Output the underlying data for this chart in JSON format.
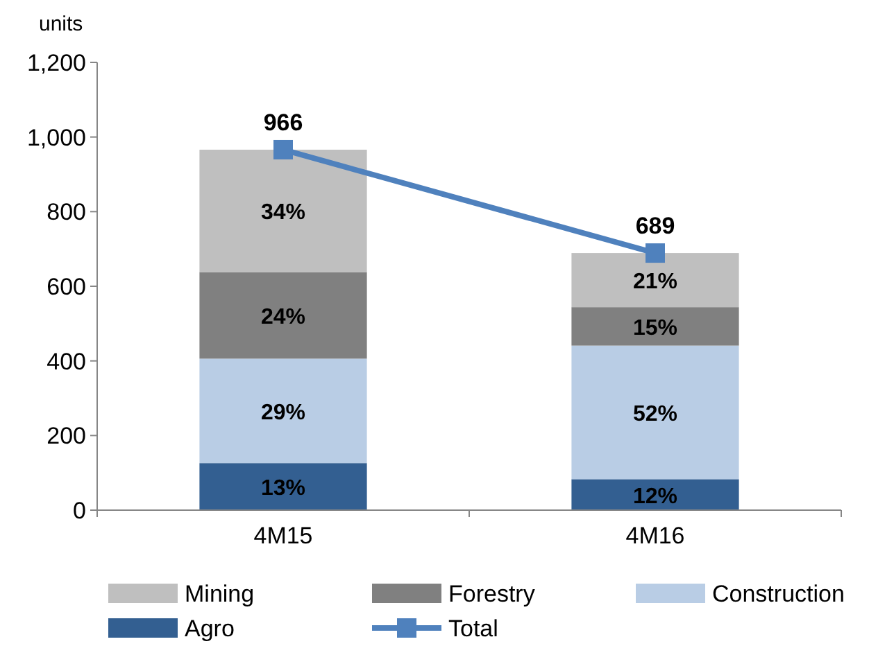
{
  "chart_data": {
    "type": "bar",
    "stacked": true,
    "ylabel": "units",
    "categories": [
      "4M15",
      "4M16"
    ],
    "ylim": [
      0,
      1200
    ],
    "yticks": [
      0,
      200,
      400,
      600,
      800,
      {
        "value": 1000,
        "label": "1,000"
      },
      {
        "value": 1200,
        "label": "1,200"
      }
    ],
    "grid": false,
    "legend": "bottom",
    "series": [
      {
        "name": "Agro",
        "color": "#335f91",
        "values": [
          126,
          83
        ]
      },
      {
        "name": "Construction",
        "color": "#b9cde5",
        "values": [
          280,
          358
        ]
      },
      {
        "name": "Forestry",
        "color": "#808080",
        "values": [
          232,
          103
        ]
      },
      {
        "name": "Mining",
        "color": "#bfbfbf",
        "values": [
          328,
          145
        ]
      },
      {
        "name": "Total",
        "type": "line",
        "color": "#4f81bd",
        "marker": "square",
        "values": [
          966,
          689
        ],
        "value_labels": [
          "966",
          "689"
        ]
      }
    ],
    "annotations": [
      "13%",
      "29%",
      "24%",
      "34%",
      "12%",
      "52%",
      "15%",
      "21%"
    ]
  }
}
